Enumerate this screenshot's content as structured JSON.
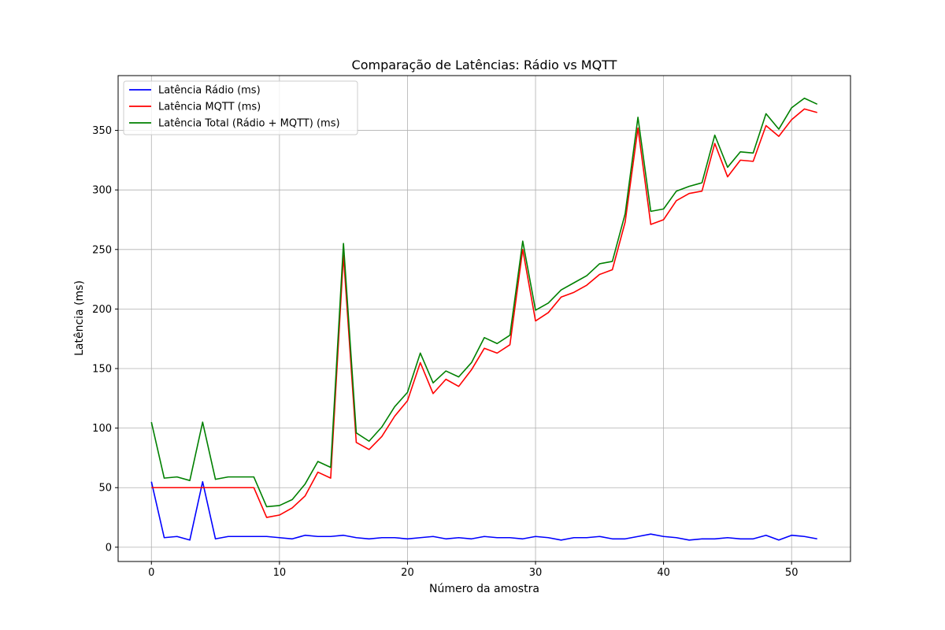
{
  "chart_data": {
    "type": "line",
    "title": "Comparação de Latências: Rádio vs MQTT",
    "xlabel": "Número da amostra",
    "ylabel": "Latência (ms)",
    "xlim": [
      -2.6,
      54.6
    ],
    "ylim": [
      -12,
      396
    ],
    "xticks": [
      0,
      10,
      20,
      30,
      40,
      50
    ],
    "yticks": [
      0,
      50,
      100,
      150,
      200,
      250,
      300,
      350
    ],
    "grid": true,
    "legend_position": "top-left",
    "x": [
      0,
      1,
      2,
      3,
      4,
      5,
      6,
      7,
      8,
      9,
      10,
      11,
      12,
      13,
      14,
      15,
      16,
      17,
      18,
      19,
      20,
      21,
      22,
      23,
      24,
      25,
      26,
      27,
      28,
      29,
      30,
      31,
      32,
      33,
      34,
      35,
      36,
      37,
      38,
      39,
      40,
      41,
      42,
      43,
      44,
      45,
      46,
      47,
      48,
      49,
      50,
      51,
      52
    ],
    "series": [
      {
        "name": "Latência Rádio (ms)",
        "color": "#0000ff",
        "values": [
          55,
          8,
          9,
          6,
          55,
          7,
          9,
          9,
          9,
          9,
          8,
          7,
          10,
          9,
          9,
          10,
          8,
          7,
          8,
          8,
          7,
          8,
          9,
          7,
          8,
          7,
          9,
          8,
          8,
          7,
          9,
          8,
          6,
          8,
          8,
          9,
          7,
          7,
          9,
          11,
          9,
          8,
          6,
          7,
          7,
          8,
          7,
          7,
          10,
          6,
          10,
          9,
          7
        ]
      },
      {
        "name": "Latência MQTT (ms)",
        "color": "#ff0000",
        "values": [
          50,
          50,
          50,
          50,
          50,
          50,
          50,
          50,
          50,
          25,
          27,
          33,
          43,
          63,
          58,
          245,
          88,
          82,
          93,
          110,
          123,
          155,
          129,
          141,
          135,
          149,
          167,
          163,
          170,
          250,
          190,
          197,
          210,
          214,
          220,
          229,
          233,
          273,
          352,
          271,
          275,
          291,
          297,
          299,
          339,
          311,
          325,
          324,
          354,
          345,
          359,
          368,
          365
        ]
      },
      {
        "name": "Latência Total (Rádio + MQTT) (ms)",
        "color": "#008000",
        "values": [
          105,
          58,
          59,
          56,
          105,
          57,
          59,
          59,
          59,
          34,
          35,
          40,
          53,
          72,
          67,
          255,
          96,
          89,
          101,
          118,
          130,
          163,
          138,
          148,
          143,
          155,
          176,
          171,
          178,
          257,
          199,
          205,
          216,
          222,
          228,
          238,
          240,
          280,
          361,
          282,
          284,
          299,
          303,
          306,
          346,
          319,
          332,
          331,
          364,
          351,
          369,
          377,
          372
        ]
      }
    ]
  }
}
